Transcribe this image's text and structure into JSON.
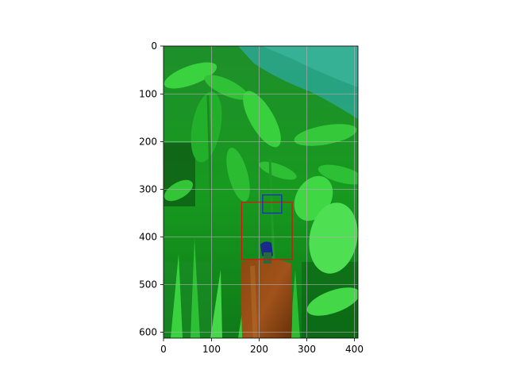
{
  "figure": {
    "image_description_tag": "pepper-plant-photo",
    "axes": {
      "x_ticks": [
        "0",
        "100",
        "200",
        "300",
        "400"
      ],
      "y_ticks": [
        "0",
        "100",
        "200",
        "300",
        "400",
        "500",
        "600"
      ],
      "xlim": [
        0,
        408
      ],
      "ylim": [
        612,
        0
      ],
      "grid": true
    },
    "boxes": [
      {
        "label_color": "#e01010",
        "x0": 164,
        "y0": 327,
        "x1": 270,
        "y1": 447
      },
      {
        "label_color": "#2020e0",
        "x0": 208,
        "y0": 312,
        "x1": 248,
        "y1": 350
      }
    ]
  }
}
